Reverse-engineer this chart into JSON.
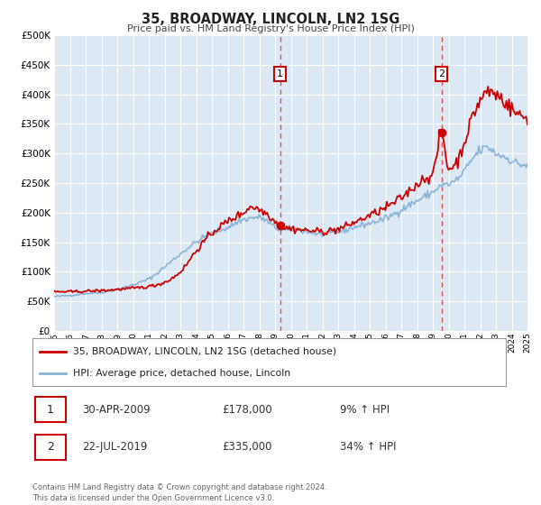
{
  "title": "35, BROADWAY, LINCOLN, LN2 1SG",
  "subtitle": "Price paid vs. HM Land Registry's House Price Index (HPI)",
  "background_color": "#ffffff",
  "plot_bg_color": "#dce9f5",
  "grid_color": "#c8d8e8",
  "red_line_color": "#cc0000",
  "blue_line_color": "#8ab4d4",
  "dashed_line_color": "#dd4444",
  "ylim": [
    0,
    500000
  ],
  "yticks": [
    0,
    50000,
    100000,
    150000,
    200000,
    250000,
    300000,
    350000,
    400000,
    450000,
    500000
  ],
  "ytick_labels": [
    "£0",
    "£50K",
    "£100K",
    "£150K",
    "£200K",
    "£250K",
    "£300K",
    "£350K",
    "£400K",
    "£450K",
    "£500K"
  ],
  "x_start_year": 1995,
  "x_end_year": 2025,
  "marker1_year": 2009.33,
  "marker1_price": 178000,
  "marker1_label": "1",
  "marker1_date": "30-APR-2009",
  "marker1_pct": "9%",
  "marker2_year": 2019.55,
  "marker2_price": 335000,
  "marker2_label": "2",
  "marker2_date": "22-JUL-2019",
  "marker2_pct": "34%",
  "legend_line1": "35, BROADWAY, LINCOLN, LN2 1SG (detached house)",
  "legend_line2": "HPI: Average price, detached house, Lincoln",
  "footnote": "Contains HM Land Registry data © Crown copyright and database right 2024.\nThis data is licensed under the Open Government Licence v3.0."
}
